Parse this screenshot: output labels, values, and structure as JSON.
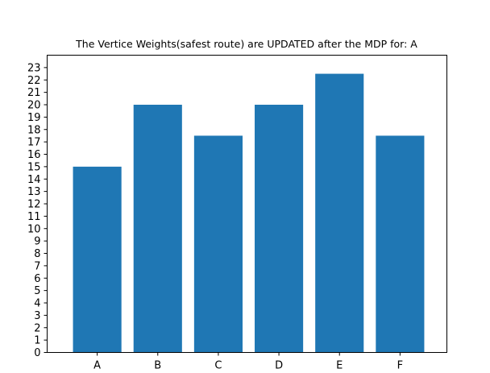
{
  "chart_data": {
    "type": "bar",
    "title": "The Vertice Weights(safest route) are UPDATED after the MDP for: A",
    "xlabel": "",
    "ylabel": "",
    "categories": [
      "A",
      "B",
      "C",
      "D",
      "E",
      "F"
    ],
    "values": [
      15,
      20,
      17.5,
      20,
      22.5,
      17.5
    ],
    "ylim": [
      0,
      24
    ],
    "yticks": [
      0,
      1,
      2,
      3,
      4,
      5,
      6,
      7,
      8,
      9,
      10,
      11,
      12,
      13,
      14,
      15,
      16,
      17,
      18,
      19,
      20,
      21,
      22,
      23
    ],
    "bar_color": "#1f77b4",
    "grid": false,
    "legend": "none"
  }
}
